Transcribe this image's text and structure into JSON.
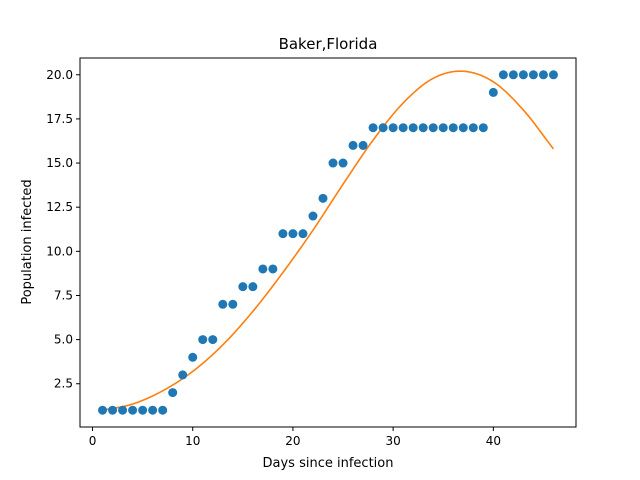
{
  "chart_data": {
    "type": "scatter",
    "title": "Baker,Florida",
    "xlabel": "Days since infection",
    "ylabel": "Population infected",
    "xlim": [
      -1.25,
      48.25
    ],
    "ylim": [
      0.05,
      20.95
    ],
    "xticks": [
      0,
      10,
      20,
      30,
      40
    ],
    "xtick_labels": [
      "0",
      "10",
      "20",
      "30",
      "40"
    ],
    "yticks": [
      2.5,
      5.0,
      7.5,
      10.0,
      12.5,
      15.0,
      17.5,
      20.0
    ],
    "ytick_labels": [
      "2.5",
      "5.0",
      "7.5",
      "10.0",
      "12.5",
      "15.0",
      "17.5",
      "20.0"
    ],
    "grid": false,
    "series": [
      {
        "kind": "scatter",
        "color": "#1f77b4",
        "x": [
          1,
          2,
          3,
          4,
          5,
          6,
          7,
          8,
          9,
          10,
          11,
          12,
          13,
          14,
          15,
          16,
          17,
          18,
          19,
          20,
          21,
          22,
          23,
          24,
          25,
          26,
          27,
          28,
          29,
          30,
          31,
          32,
          33,
          34,
          35,
          36,
          37,
          38,
          39,
          40,
          41,
          42,
          43,
          44,
          45,
          46
        ],
        "y": [
          1,
          1,
          1,
          1,
          1,
          1,
          1,
          2,
          3,
          4,
          5,
          5,
          7,
          7,
          8,
          8,
          9,
          9,
          11,
          11,
          11,
          12,
          13,
          15,
          15,
          16,
          16,
          17,
          17,
          17,
          17,
          17,
          17,
          17,
          17,
          17,
          17,
          17,
          17,
          19,
          20,
          20,
          20,
          20,
          20,
          20
        ]
      },
      {
        "kind": "line",
        "color": "#ff7f0e",
        "x": [
          1,
          4,
          7,
          10,
          13,
          16,
          19,
          22,
          25,
          28,
          31,
          34,
          37,
          40,
          43,
          46
        ],
        "y": [
          1.0,
          1.35,
          2.1,
          3.2,
          4.7,
          6.6,
          8.8,
          11.2,
          13.8,
          16.3,
          18.4,
          19.8,
          20.2,
          19.6,
          18.0,
          15.8
        ]
      }
    ]
  }
}
